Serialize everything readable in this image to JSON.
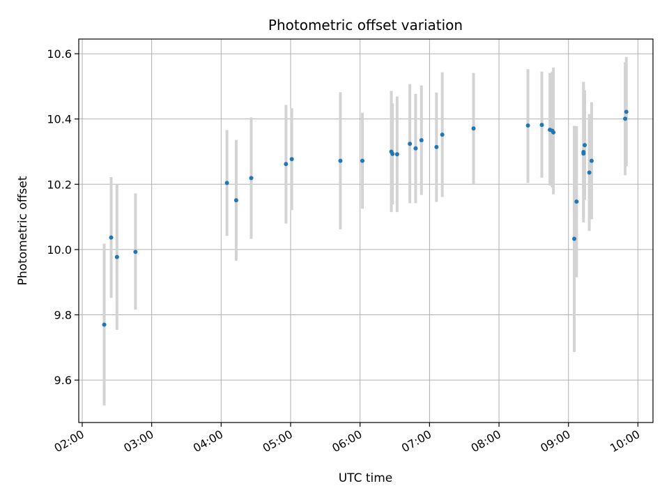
{
  "chart_data": {
    "type": "scatter",
    "title": "Photometric offset variation",
    "xlabel": "UTC time",
    "ylabel": "Photometric offset",
    "x_ticks": [
      "02:00",
      "03:00",
      "04:00",
      "05:00",
      "06:00",
      "07:00",
      "08:00",
      "09:00",
      "10:00"
    ],
    "y_ticks": [
      "9.6",
      "9.8",
      "10.0",
      "10.2",
      "10.4",
      "10.6"
    ],
    "xlim": [
      "01:57",
      "10:13"
    ],
    "ylim": [
      9.47,
      10.645
    ],
    "grid": true,
    "colors": {
      "point": "#1f77b4",
      "errorbar": "#d3d3d3",
      "grid": "#b0b0b0"
    },
    "points": [
      {
        "x": "02:19",
        "y": 9.77,
        "ylo": 9.522,
        "yhi": 10.018
      },
      {
        "x": "02:25",
        "y": 10.037,
        "ylo": 9.852,
        "yhi": 10.222
      },
      {
        "x": "02:30",
        "y": 9.977,
        "ylo": 9.754,
        "yhi": 10.2
      },
      {
        "x": "02:46",
        "y": 9.993,
        "ylo": 9.816,
        "yhi": 10.172
      },
      {
        "x": "04:05",
        "y": 10.204,
        "ylo": 10.042,
        "yhi": 10.366
      },
      {
        "x": "04:13",
        "y": 10.151,
        "ylo": 9.966,
        "yhi": 10.336
      },
      {
        "x": "04:26",
        "y": 10.219,
        "ylo": 10.033,
        "yhi": 10.405
      },
      {
        "x": "04:56",
        "y": 10.262,
        "ylo": 10.08,
        "yhi": 10.443
      },
      {
        "x": "05:01",
        "y": 10.277,
        "ylo": 10.121,
        "yhi": 10.433
      },
      {
        "x": "05:43",
        "y": 10.272,
        "ylo": 10.062,
        "yhi": 10.482
      },
      {
        "x": "06:02",
        "y": 10.272,
        "ylo": 10.125,
        "yhi": 10.419
      },
      {
        "x": "06:27",
        "y": 10.3,
        "ylo": 10.115,
        "yhi": 10.486
      },
      {
        "x": "06:28",
        "y": 10.293,
        "ylo": 10.138,
        "yhi": 10.448
      },
      {
        "x": "06:32",
        "y": 10.292,
        "ylo": 10.115,
        "yhi": 10.469
      },
      {
        "x": "06:43",
        "y": 10.324,
        "ylo": 10.142,
        "yhi": 10.507
      },
      {
        "x": "06:48",
        "y": 10.31,
        "ylo": 10.142,
        "yhi": 10.477
      },
      {
        "x": "06:53",
        "y": 10.335,
        "ylo": 10.167,
        "yhi": 10.503
      },
      {
        "x": "07:06",
        "y": 10.314,
        "ylo": 10.146,
        "yhi": 10.481
      },
      {
        "x": "07:11",
        "y": 10.352,
        "ylo": 10.161,
        "yhi": 10.543
      },
      {
        "x": "07:38",
        "y": 10.371,
        "ylo": 10.2,
        "yhi": 10.541
      },
      {
        "x": "08:25",
        "y": 10.38,
        "ylo": 10.204,
        "yhi": 10.553
      },
      {
        "x": "08:37",
        "y": 10.382,
        "ylo": 10.22,
        "yhi": 10.545
      },
      {
        "x": "08:44",
        "y": 10.367,
        "ylo": 10.196,
        "yhi": 10.541
      },
      {
        "x": "08:46",
        "y": 10.364,
        "ylo": 10.19,
        "yhi": 10.545
      },
      {
        "x": "08:47",
        "y": 10.359,
        "ylo": 10.169,
        "yhi": 10.558
      },
      {
        "x": "09:05",
        "y": 10.033,
        "ylo": 9.686,
        "yhi": 10.379
      },
      {
        "x": "09:07",
        "y": 10.147,
        "ylo": 9.915,
        "yhi": 10.378
      },
      {
        "x": "09:13",
        "y": 10.299,
        "ylo": 10.083,
        "yhi": 10.514
      },
      {
        "x": "09:13",
        "y": 10.294,
        "ylo": 10.097,
        "yhi": 10.501
      },
      {
        "x": "09:14",
        "y": 10.32,
        "ylo": 10.152,
        "yhi": 10.488
      },
      {
        "x": "09:18",
        "y": 10.236,
        "ylo": 10.057,
        "yhi": 10.415
      },
      {
        "x": "09:20",
        "y": 10.272,
        "ylo": 10.093,
        "yhi": 10.451
      },
      {
        "x": "09:49",
        "y": 10.401,
        "ylo": 10.228,
        "yhi": 10.574
      },
      {
        "x": "09:50",
        "y": 10.422,
        "ylo": 10.255,
        "yhi": 10.59
      }
    ]
  }
}
